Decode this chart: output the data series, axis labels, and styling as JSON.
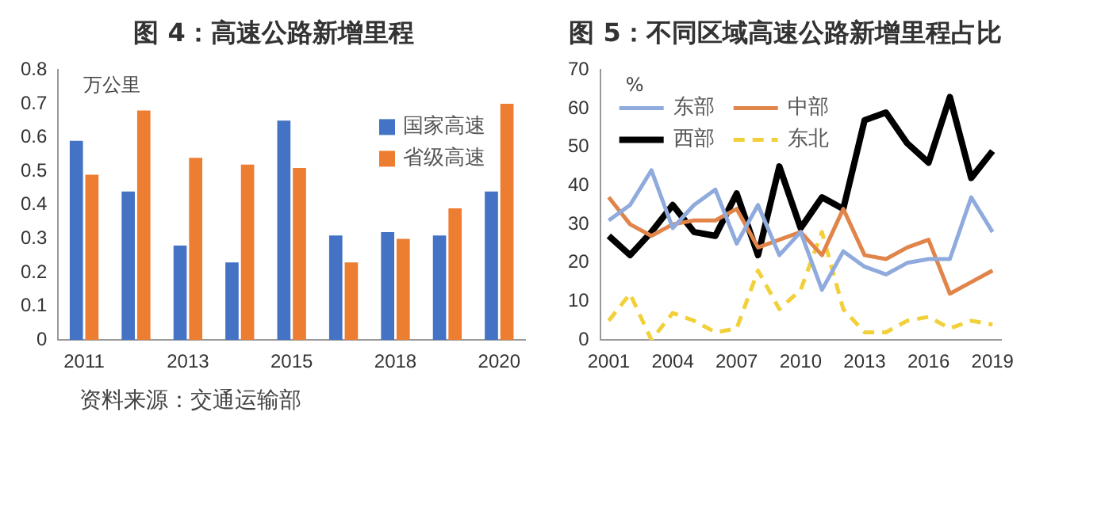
{
  "chart_data": [
    {
      "type": "bar",
      "title": "图 4：高速公路新增里程",
      "ylabel": "万公里",
      "categories": [
        "2011",
        null,
        "2013",
        null,
        "2015",
        null,
        "2018",
        null,
        "2020"
      ],
      "series": [
        {
          "name": "国家高速",
          "color": "#4472c4",
          "values": [
            0.59,
            0.44,
            0.28,
            0.23,
            0.65,
            0.31,
            0.32,
            0.31,
            0.44
          ]
        },
        {
          "name": "省级高速",
          "color": "#ed7d31",
          "values": [
            0.49,
            0.68,
            0.54,
            0.52,
            0.51,
            0.23,
            0.3,
            0.39,
            0.7
          ]
        }
      ],
      "ylim": [
        0,
        0.8
      ],
      "yticks": [
        0,
        0.1,
        0.2,
        0.3,
        0.4,
        0.5,
        0.6,
        0.7,
        0.8
      ],
      "grid": false,
      "legend": "top right",
      "annotations": [
        "资料来源：交通运输部"
      ]
    },
    {
      "type": "line",
      "title": "图 5：不同区域高速公路新增里程占比",
      "ylabel": "%",
      "x": [
        2001,
        2002,
        2003,
        2004,
        2005,
        2006,
        2007,
        2008,
        2009,
        2010,
        2011,
        2012,
        2013,
        2014,
        2015,
        2016,
        2017,
        2018,
        2019
      ],
      "series": [
        {
          "name": "东部",
          "color": "#8faadc",
          "values": [
            31,
            35,
            44,
            29,
            35,
            39,
            25,
            35,
            22,
            28,
            13,
            23,
            19,
            17,
            20,
            21,
            21,
            37,
            28
          ]
        },
        {
          "name": "中部",
          "color": "#e0844a",
          "values": [
            37,
            30,
            27,
            30,
            31,
            31,
            34,
            24,
            26,
            28,
            22,
            34,
            22,
            21,
            24,
            26,
            12,
            15,
            18
          ]
        },
        {
          "name": "西部",
          "color": "#000000",
          "values": [
            27,
            22,
            28,
            35,
            28,
            27,
            38,
            22,
            45,
            29,
            37,
            34,
            57,
            59,
            51,
            46,
            63,
            42,
            49
          ]
        },
        {
          "name": "东北",
          "color": "#f2d03a",
          "line_style": "dashed",
          "values": [
            5,
            12,
            0,
            7,
            5,
            2,
            3,
            18,
            8,
            13,
            28,
            8,
            2,
            2,
            5,
            6,
            3,
            5,
            4
          ]
        }
      ],
      "xlim": [
        2000.6,
        2019.4
      ],
      "xticks": [
        2001,
        2004,
        2007,
        2010,
        2013,
        2016,
        2019
      ],
      "ylim": [
        0,
        70
      ],
      "yticks": [
        0,
        10,
        20,
        30,
        40,
        50,
        60,
        70
      ],
      "grid": false,
      "legend": "top left",
      "marker": "none",
      "line_style": "solid"
    }
  ]
}
